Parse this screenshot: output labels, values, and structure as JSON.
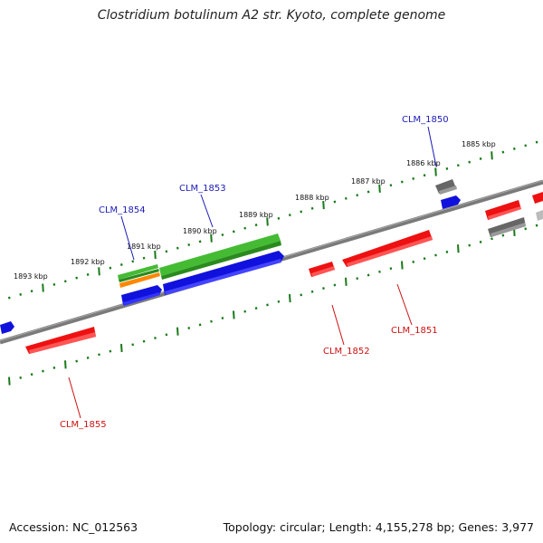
{
  "title": "Clostridium botulinum A2 str. Kyoto, complete genome",
  "footer": {
    "accession": "Accession: NC_012563",
    "summary": "Topology: circular; Length: 4,155,278 bp; Genes: 3,977"
  },
  "colors": {
    "backbone": "#7a7a7a",
    "tick": "#1a7a1a",
    "forward_label": "#1a1ab8",
    "reverse_label": "#cc1111",
    "cds_red": "#ee1111",
    "cds_blue": "#1111dd",
    "gene_green": "#44bb33",
    "orange": "#ff8800",
    "gray": "#777777"
  },
  "ticks_top": [
    "1885 kbp",
    "1886 kbp",
    "1887 kbp",
    "1888 kbp",
    "1889 kbp",
    "1890 kbp",
    "1891 kbp",
    "1892 kbp",
    "1893 kbp"
  ],
  "gene_labels": {
    "clm_1850": "CLM_1850",
    "clm_1851": "CLM_1851",
    "clm_1852": "CLM_1852",
    "clm_1853": "CLM_1853",
    "clm_1854": "CLM_1854",
    "clm_1855": "CLM_1855"
  }
}
